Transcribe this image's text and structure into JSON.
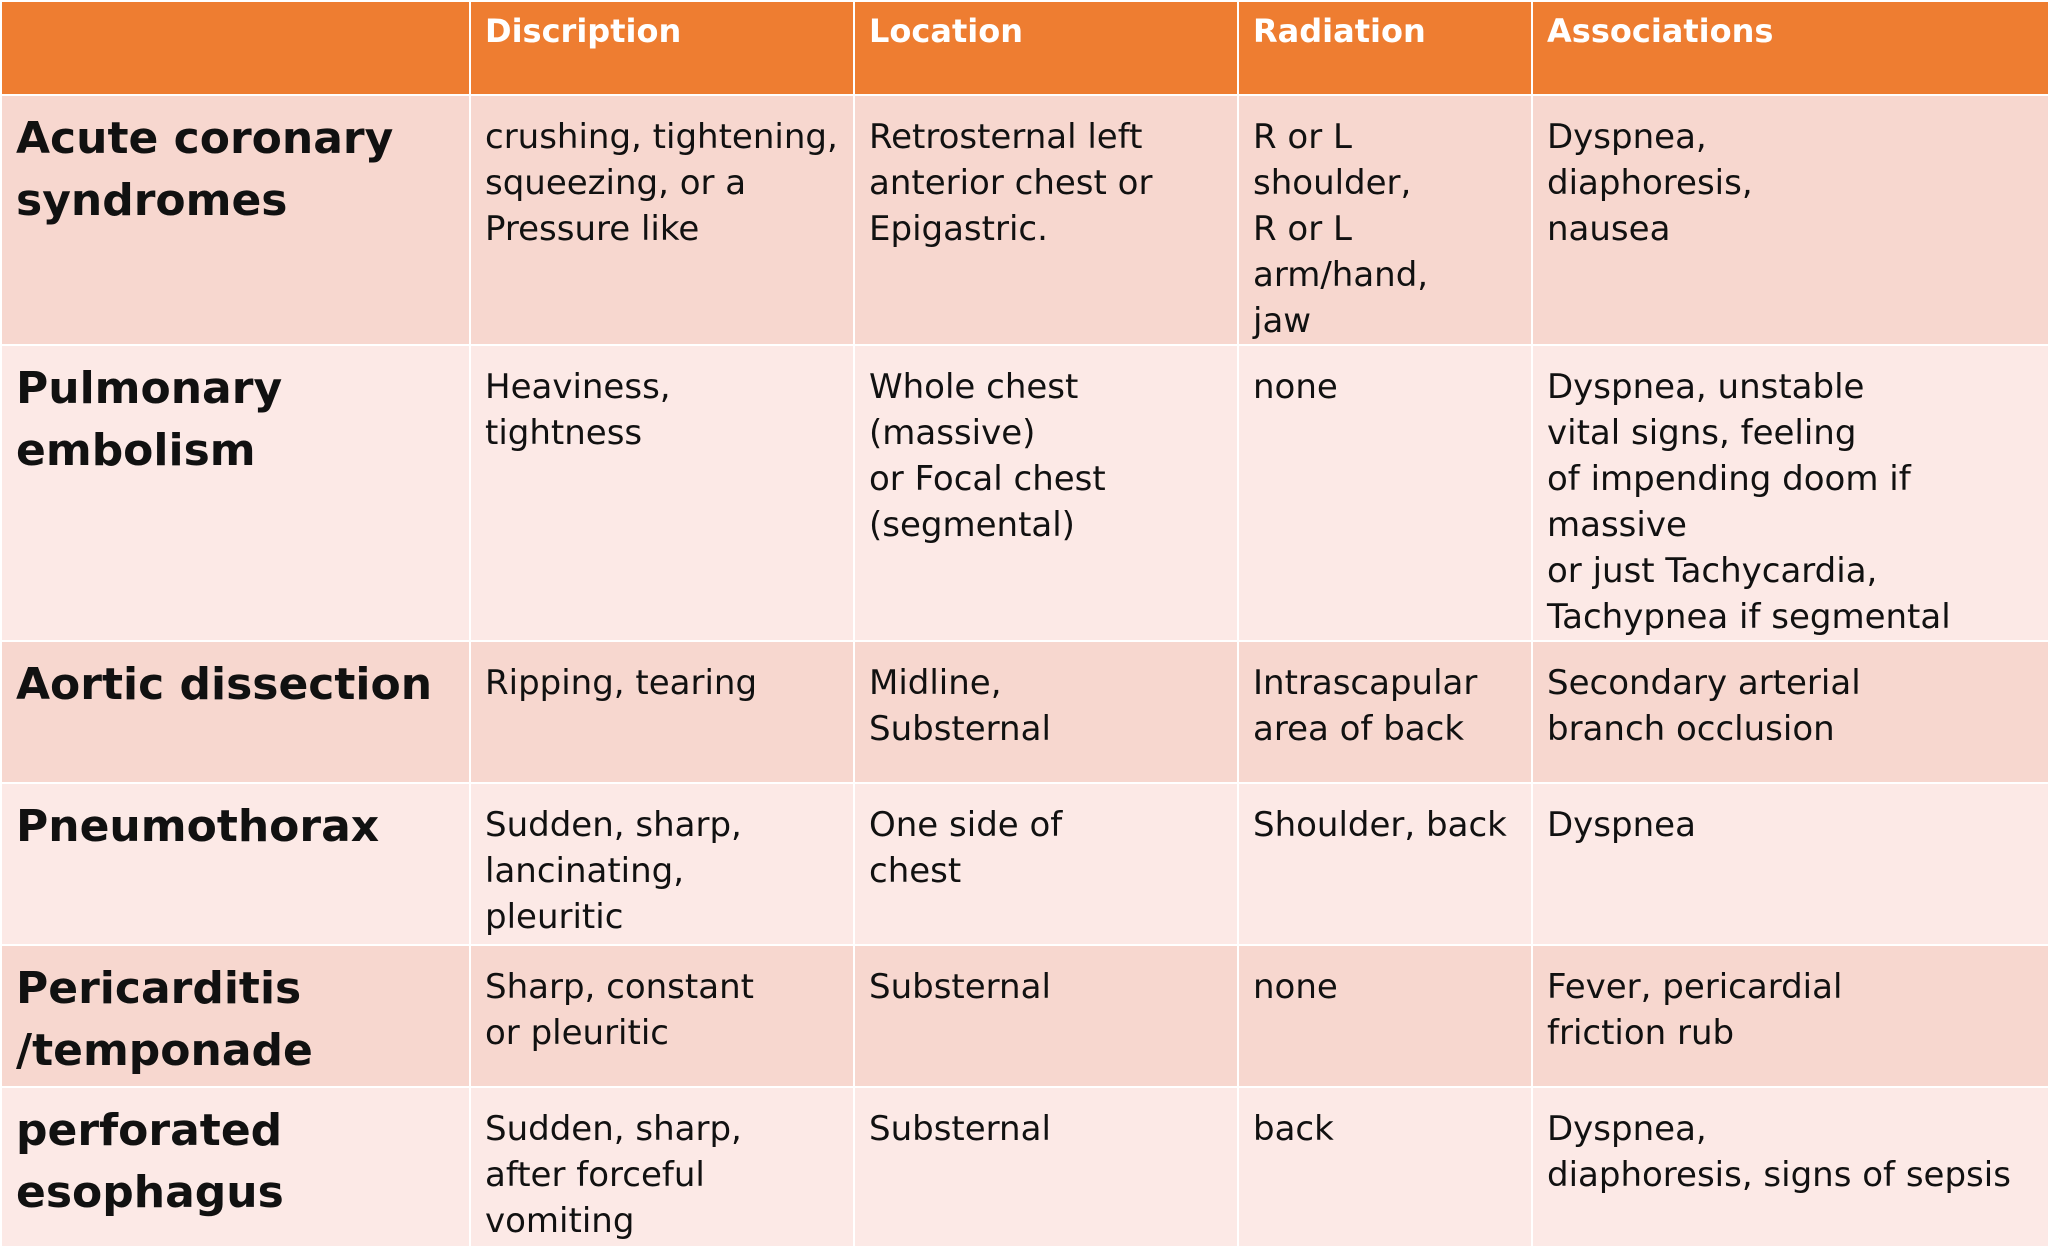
{
  "table": {
    "headers": [
      "",
      "Discription",
      "Location",
      "Radiation",
      "Associations"
    ],
    "rows": [
      {
        "name": "Acute coronary\nsyndromes",
        "description": "crushing, tightening,\nsqueezing, or a\nPressure like",
        "location": "Retrosternal left\nanterior chest or\nEpigastric.",
        "radiation": "R or L shoulder,\nR or L arm/hand,\njaw",
        "associations": "Dyspnea,\ndiaphoresis,\nnausea"
      },
      {
        "name": "Pulmonary\nembolism",
        "description": "Heaviness,\ntightness",
        "location": "Whole chest (massive)\nor Focal chest\n(segmental)",
        "radiation": "none",
        "associations": "Dyspnea, unstable\nvital signs, feeling\nof impending doom if massive\nor just Tachycardia,\nTachypnea if segmental"
      },
      {
        "name": "Aortic dissection",
        "description": "Ripping, tearing",
        "location": "Midline,\nSubsternal",
        "radiation": "Intrascapular\narea of back",
        "associations": "Secondary arterial\nbranch occlusion"
      },
      {
        "name": "Pneumothorax",
        "description": "Sudden, sharp,\nlancinating,\npleuritic",
        "location": "One side of\nchest",
        "radiation": "Shoulder, back",
        "associations": "Dyspnea"
      },
      {
        "name": "Pericarditis\n/temponade",
        "description": "Sharp, constant\nor pleuritic",
        "location": "Substernal",
        "radiation": "none",
        "associations": "Fever, pericardial\nfriction rub"
      },
      {
        "name": "perforated\nesophagus",
        "description": "Sudden, sharp,\nafter forceful\nvomiting",
        "location": "Substernal",
        "radiation": "back",
        "associations": "Dyspnea,\ndiaphoresis, signs of sepsis"
      }
    ]
  },
  "colors": {
    "header_bg": "#ee7d31",
    "row_dark": "#f7d7cf",
    "row_light": "#fce9e6"
  }
}
